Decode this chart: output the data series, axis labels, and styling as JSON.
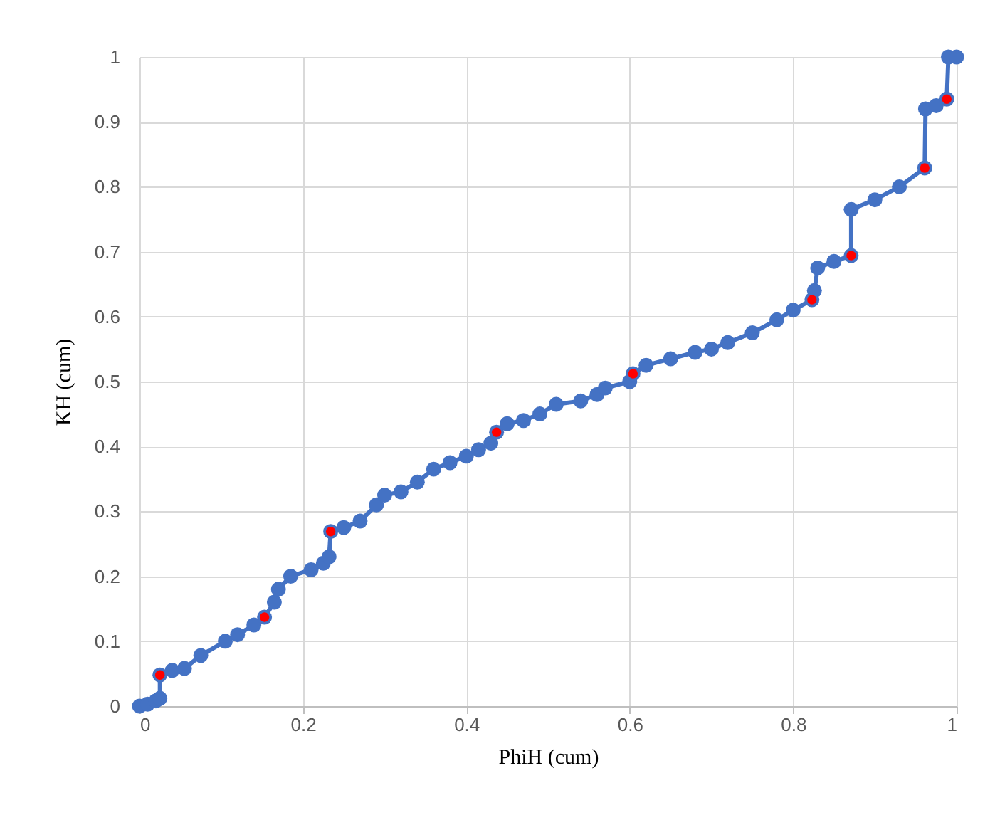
{
  "chart_data": {
    "type": "line",
    "xlabel": "PhiH (cum)",
    "ylabel": "KH (cum)",
    "xlim": [
      0,
      1
    ],
    "ylim": [
      0,
      1
    ],
    "xticks": [
      0,
      0.2,
      0.4,
      0.6,
      0.8,
      1
    ],
    "yticks": [
      0,
      0.1,
      0.2,
      0.3,
      0.4,
      0.5,
      0.6,
      0.7,
      0.8,
      0.9,
      1
    ],
    "grid": true,
    "marker": "circle",
    "line_style": "solid",
    "series": [
      {
        "color": "#4472c4",
        "x": [
          0,
          0.01,
          0.02,
          0.025,
          0.025,
          0.04,
          0.055,
          0.075,
          0.105,
          0.12,
          0.14,
          0.153,
          0.165,
          0.17,
          0.185,
          0.21,
          0.225,
          0.232,
          0.234,
          0.25,
          0.27,
          0.29,
          0.3,
          0.32,
          0.34,
          0.36,
          0.38,
          0.4,
          0.415,
          0.43,
          0.437,
          0.45,
          0.47,
          0.49,
          0.51,
          0.54,
          0.56,
          0.57,
          0.6,
          0.604,
          0.62,
          0.65,
          0.68,
          0.7,
          0.72,
          0.75,
          0.78,
          0.8,
          0.823,
          0.826,
          0.83,
          0.85,
          0.871,
          0.871,
          0.9,
          0.93,
          0.961,
          0.962,
          0.975,
          0.988,
          0.99,
          1
        ],
        "values": [
          0,
          0.003,
          0.008,
          0.012,
          0.048,
          0.055,
          0.058,
          0.078,
          0.1,
          0.11,
          0.125,
          0.137,
          0.16,
          0.18,
          0.2,
          0.21,
          0.22,
          0.23,
          0.269,
          0.275,
          0.285,
          0.31,
          0.325,
          0.33,
          0.345,
          0.365,
          0.375,
          0.385,
          0.395,
          0.405,
          0.422,
          0.435,
          0.44,
          0.45,
          0.465,
          0.47,
          0.48,
          0.49,
          0.5,
          0.512,
          0.525,
          0.535,
          0.545,
          0.55,
          0.56,
          0.575,
          0.595,
          0.61,
          0.626,
          0.64,
          0.675,
          0.685,
          0.694,
          0.765,
          0.78,
          0.8,
          0.829,
          0.92,
          0.925,
          0.935,
          1,
          1
        ]
      },
      {
        "type": "scatter",
        "color": "#ff0000",
        "x": [
          0.025,
          0.153,
          0.234,
          0.437,
          0.604,
          0.823,
          0.871,
          0.961,
          0.988
        ],
        "values": [
          0.048,
          0.137,
          0.269,
          0.422,
          0.512,
          0.626,
          0.694,
          0.829,
          0.935
        ]
      }
    ]
  }
}
